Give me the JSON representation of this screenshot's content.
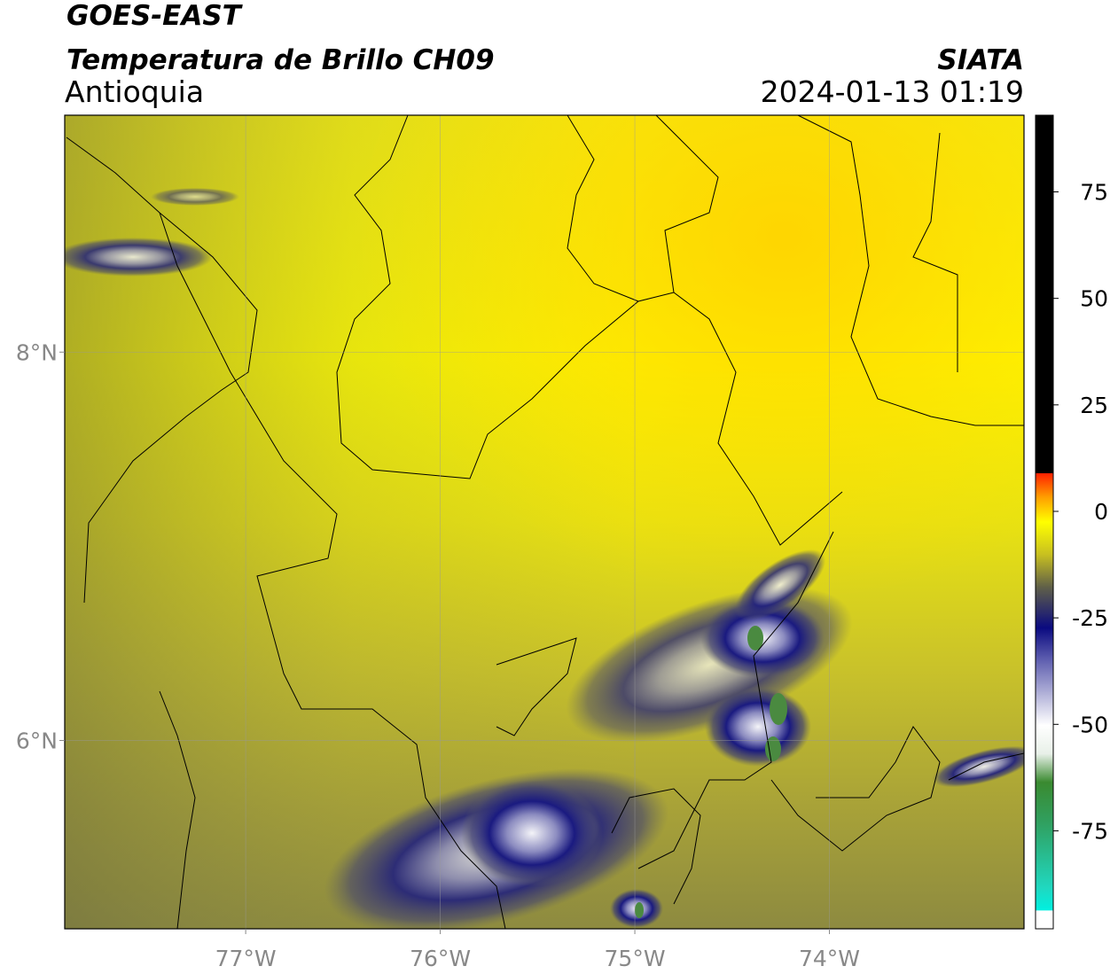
{
  "header": {
    "title": "GOES-EAST",
    "subtitle": "Temperatura de Brillo CH09",
    "source": "SIATA",
    "region": "Antioquia",
    "datetime": "2024-01-13 01:19"
  },
  "map": {
    "xlim": [
      -77.93,
      -73.0
    ],
    "ylim": [
      5.03,
      9.22
    ],
    "xticks": [
      {
        "value": -77,
        "label": "77°W"
      },
      {
        "value": -76,
        "label": "76°W"
      },
      {
        "value": -75,
        "label": "75°W"
      },
      {
        "value": -74,
        "label": "74°W"
      }
    ],
    "yticks": [
      {
        "value": 8,
        "label": "8°N"
      },
      {
        "value": 6,
        "label": "6°N"
      }
    ],
    "grid": true
  },
  "colorbar": {
    "lim": [
      -98,
      93
    ],
    "ticks": [
      75,
      50,
      25,
      0,
      -25,
      -50,
      -75
    ]
  }
}
